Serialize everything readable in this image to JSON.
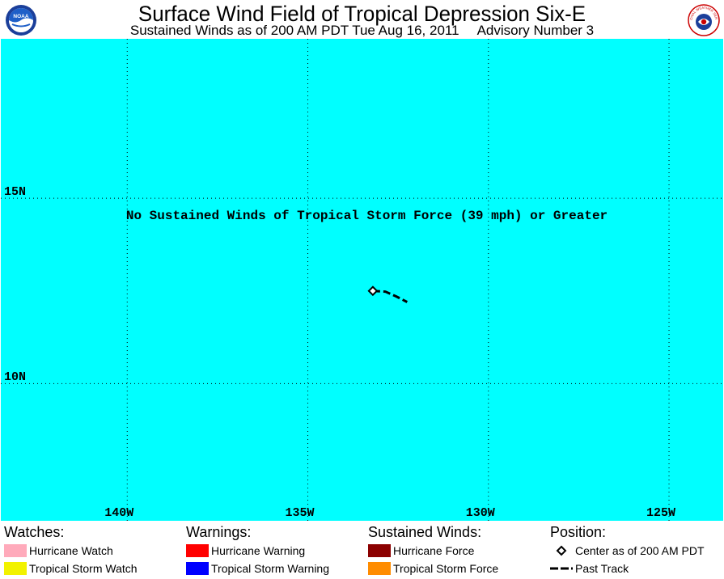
{
  "header": {
    "title": "Surface Wind Field of Tropical Depression Six-E",
    "subtitle": "Sustained Winds as of 200 AM PDT Tue Aug 16, 2011",
    "advisory": "Advisory Number 3",
    "left_logo_text": "NOAA",
    "right_logo_text": "NATIONAL WEATHER SERVICE"
  },
  "map": {
    "background_color": "#00ffff",
    "lon_range": [
      -143.5,
      -123.5
    ],
    "lat_range": [
      6.3,
      19.3
    ],
    "lat_gridlines": [
      {
        "value": 15,
        "label": "15N"
      },
      {
        "value": 10,
        "label": "10N"
      }
    ],
    "lon_gridlines": [
      {
        "value": -140,
        "label": "140W"
      },
      {
        "value": -135,
        "label": "135W"
      },
      {
        "value": -130,
        "label": "130W"
      },
      {
        "value": -125,
        "label": "125W"
      }
    ],
    "message": "No Sustained Winds of Tropical Storm Force (39 mph) or Greater",
    "center": {
      "lat": 12.5,
      "lon": -133.2
    },
    "past_track": [
      {
        "lat": 12.5,
        "lon": -133.2
      },
      {
        "lat": 12.48,
        "lon": -132.85
      },
      {
        "lat": 12.35,
        "lon": -132.55
      },
      {
        "lat": 12.2,
        "lon": -132.25
      }
    ]
  },
  "legend": {
    "watches": {
      "heading": "Watches:",
      "items": [
        {
          "label": "Hurricane Watch",
          "color": "#ffaabb"
        },
        {
          "label": "Tropical Storm Watch",
          "color": "#f2f200"
        }
      ]
    },
    "warnings": {
      "heading": "Warnings:",
      "items": [
        {
          "label": "Hurricane Warning",
          "color": "#ff0000"
        },
        {
          "label": "Tropical Storm Warning",
          "color": "#0000ff"
        }
      ]
    },
    "winds": {
      "heading": "Sustained Winds:",
      "items": [
        {
          "label": "Hurricane Force",
          "color": "#8b0000"
        },
        {
          "label": "Tropical Storm Force",
          "color": "#ff8c00"
        }
      ]
    },
    "position": {
      "heading": "Position:",
      "center_label": "Center as of 200 AM PDT",
      "track_label": "Past Track"
    }
  }
}
